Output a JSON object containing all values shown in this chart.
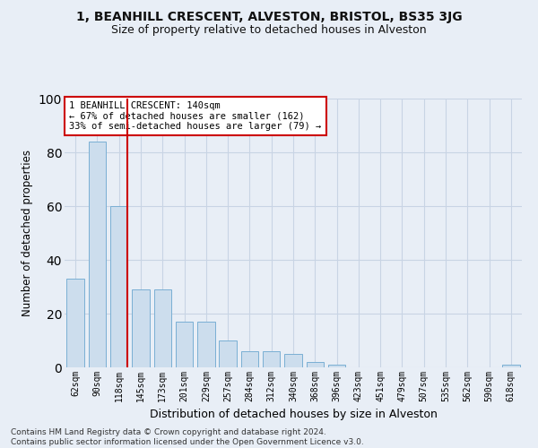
{
  "title": "1, BEANHILL CRESCENT, ALVESTON, BRISTOL, BS35 3JG",
  "subtitle": "Size of property relative to detached houses in Alveston",
  "xlabel": "Distribution of detached houses by size in Alveston",
  "ylabel": "Number of detached properties",
  "bar_labels": [
    "62sqm",
    "90sqm",
    "118sqm",
    "145sqm",
    "173sqm",
    "201sqm",
    "229sqm",
    "257sqm",
    "284sqm",
    "312sqm",
    "340sqm",
    "368sqm",
    "396sqm",
    "423sqm",
    "451sqm",
    "479sqm",
    "507sqm",
    "535sqm",
    "562sqm",
    "590sqm",
    "618sqm"
  ],
  "bar_values": [
    33,
    84,
    60,
    29,
    29,
    17,
    17,
    10,
    6,
    6,
    5,
    2,
    1,
    0,
    0,
    0,
    0,
    0,
    0,
    0,
    1
  ],
  "bar_color": "#ccdded",
  "bar_edge_color": "#7aafd4",
  "grid_color": "#c8d4e4",
  "background_color": "#e8eef6",
  "annotation_line1": "1 BEANHILL CRESCENT: 140sqm",
  "annotation_line2": "← 67% of detached houses are smaller (162)",
  "annotation_line3": "33% of semi-detached houses are larger (79) →",
  "annotation_box_color": "#ffffff",
  "annotation_box_edge_color": "#cc0000",
  "marker_line_color": "#cc0000",
  "marker_bar_index": 2,
  "ylim": [
    0,
    100
  ],
  "yticks": [
    0,
    20,
    40,
    60,
    80,
    100
  ],
  "footer_line1": "Contains HM Land Registry data © Crown copyright and database right 2024.",
  "footer_line2": "Contains public sector information licensed under the Open Government Licence v3.0.",
  "title_fontsize": 10,
  "subtitle_fontsize": 9,
  "xlabel_fontsize": 9,
  "ylabel_fontsize": 8.5,
  "tick_fontsize": 7,
  "annotation_fontsize": 7.5,
  "footer_fontsize": 6.5
}
